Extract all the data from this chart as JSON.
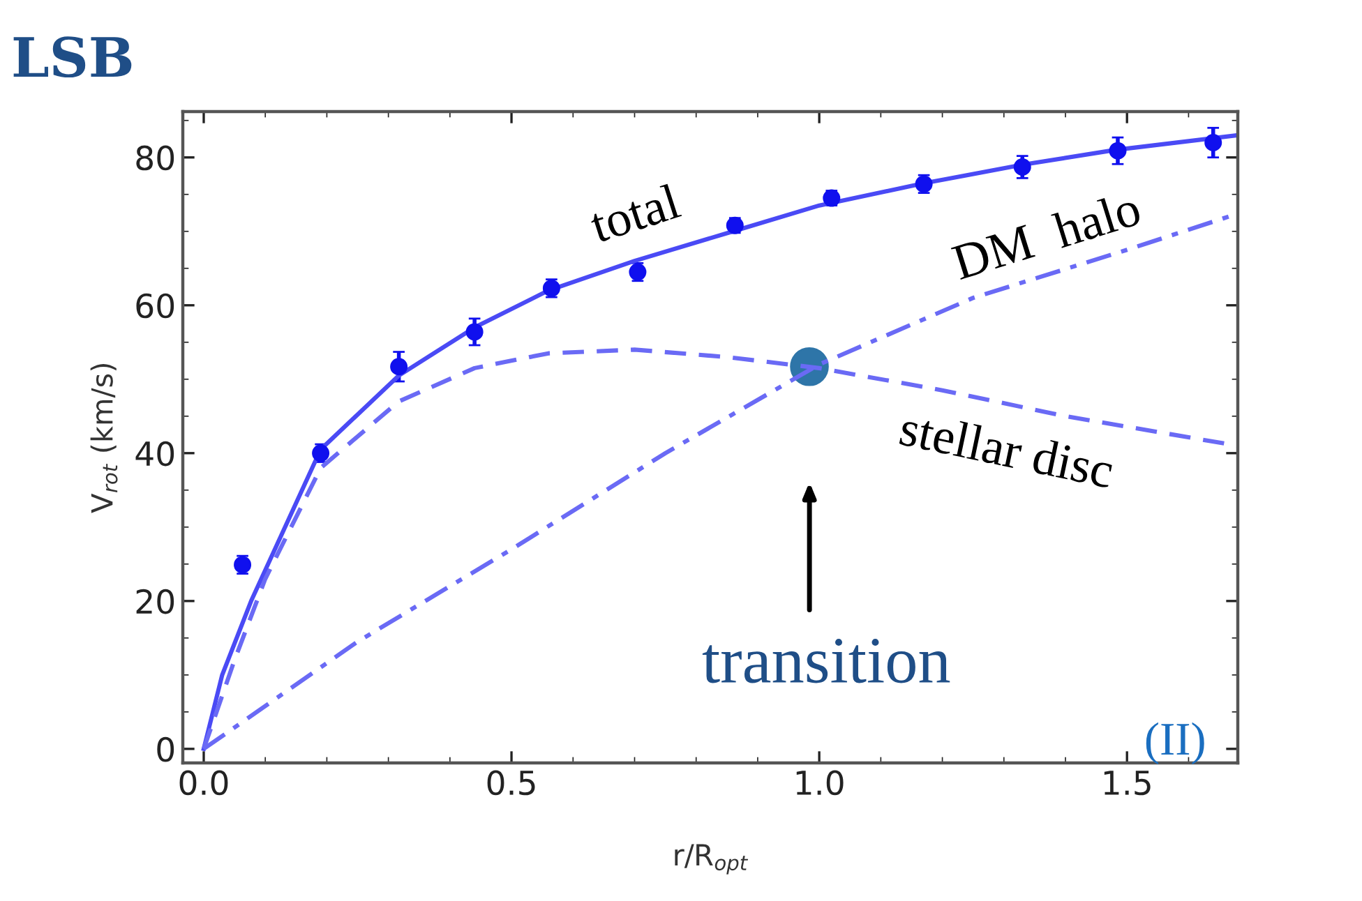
{
  "chart_data": {
    "type": "line",
    "title": "LSB",
    "xlabel": "r/R$_{opt}$",
    "ylabel": "V$_{rot}$ (km/s)",
    "xlim": [
      -0.034,
      1.68
    ],
    "ylim": [
      -1.9,
      86.2
    ],
    "xticks": [
      {
        "value": 0,
        "label": "0.0"
      },
      0.5,
      {
        "value": 1,
        "label": "1.0"
      },
      1.5
    ],
    "yticks": [
      0,
      20,
      40,
      60,
      80
    ],
    "grid": false,
    "series": [
      {
        "type": "scatter",
        "marker": "circle",
        "color": "#1010ee",
        "x": [
          0.063,
          0.19,
          0.317,
          0.44,
          0.565,
          0.705,
          0.863,
          1.02,
          1.17,
          1.33,
          1.485,
          1.64
        ],
        "values": [
          24.9,
          40,
          51.7,
          56.4,
          62.3,
          64.5,
          70.8,
          74.5,
          76.4,
          78.7,
          80.9,
          82
        ],
        "errors": [
          1.2,
          1.2,
          2,
          1.8,
          1.2,
          1.2,
          1,
          1,
          1.2,
          1.5,
          1.8,
          2
        ]
      },
      {
        "type": "scatter",
        "marker": "circle",
        "color": "#2e75a8",
        "x": [
          0.984
        ],
        "values": [
          51.7
        ]
      },
      {
        "name": "total",
        "line_style": "solid",
        "color": "#4a4af5",
        "x": [
          0,
          0.03,
          0.077,
          0.19,
          0.317,
          0.44,
          0.56,
          0.7,
          0.86,
          1.0,
          1.17,
          1.33,
          1.48,
          1.68
        ],
        "values": [
          0,
          10,
          20,
          40.5,
          50.5,
          57,
          62,
          66,
          70,
          73.5,
          76.5,
          79,
          81,
          83
        ]
      },
      {
        "name": "DM  halo",
        "line_style": "dashdot",
        "color": "#6a6af5",
        "x": [
          0,
          0.25,
          0.5,
          0.75,
          1.0,
          1.25,
          1.5,
          1.68
        ],
        "values": [
          0,
          14.5,
          27,
          40,
          52,
          61,
          67.5,
          72.4
        ]
      },
      {
        "name": "stellar disc",
        "line_style": "dashed",
        "color": "#6a6af5",
        "x": [
          0,
          0.05,
          0.1,
          0.19,
          0.317,
          0.44,
          0.56,
          0.7,
          0.85,
          1.0,
          1.2,
          1.4,
          1.68
        ],
        "values": [
          0,
          12,
          23,
          38,
          47,
          51.5,
          53.5,
          54,
          53,
          51.5,
          48.5,
          45,
          41
        ]
      }
    ],
    "annotations": [
      "transition",
      "(II)"
    ]
  }
}
